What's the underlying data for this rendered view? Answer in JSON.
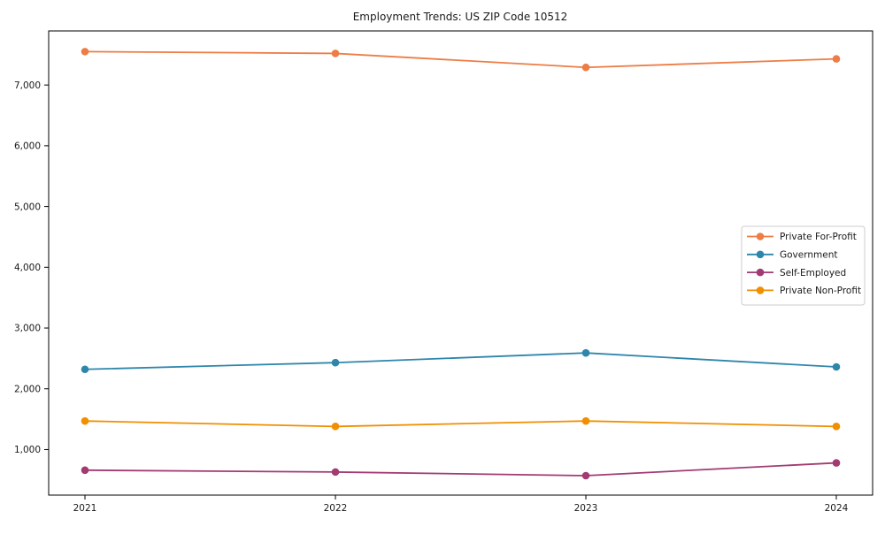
{
  "chart_data": {
    "type": "line",
    "title": "Employment Trends: US ZIP Code 10512",
    "x": [
      "2021",
      "2022",
      "2023",
      "2024"
    ],
    "xlabel": "",
    "ylabel": "",
    "ylim": [
      250,
      7890
    ],
    "yticks": [
      1000,
      2000,
      3000,
      4000,
      5000,
      6000,
      7000
    ],
    "ytick_labels": [
      "1,000",
      "2,000",
      "3,000",
      "4,000",
      "5,000",
      "6,000",
      "7,000"
    ],
    "grid": false,
    "legend_position": "center right",
    "marker": "circle",
    "series": [
      {
        "name": "Private For-Profit",
        "color": "#ED7D45",
        "values": [
          7550,
          7520,
          7290,
          7430
        ]
      },
      {
        "name": "Government",
        "color": "#2E86AB",
        "values": [
          2320,
          2430,
          2590,
          2360
        ]
      },
      {
        "name": "Self-Employed",
        "color": "#A23B72",
        "values": [
          660,
          630,
          570,
          780
        ]
      },
      {
        "name": "Private Non-Profit",
        "color": "#F18F01",
        "values": [
          1470,
          1380,
          1470,
          1380
        ]
      }
    ]
  }
}
